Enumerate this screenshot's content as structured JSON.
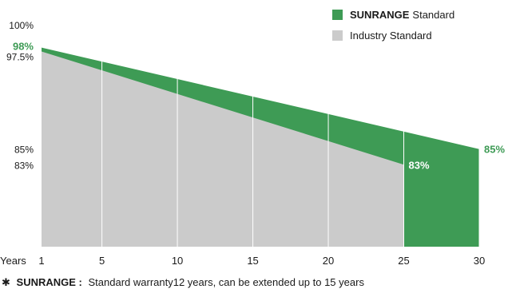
{
  "colors": {
    "sunrange": "#3e9b55",
    "industry": "#cbcbcb",
    "grid": "#ffffff",
    "accent_text": "#3e9b55"
  },
  "legend": {
    "items": [
      {
        "brand": "SUNRANGE",
        "label": "Standard",
        "color": "#3e9b55"
      },
      {
        "brand": "",
        "label": "Industry Standard",
        "color": "#cbcbcb"
      }
    ]
  },
  "footnote": {
    "marker": "✱",
    "brand": "SUNRANGE :",
    "text": "Standard warranty12 years, can be extended up to 15 years"
  },
  "chart_data": {
    "type": "area",
    "x_axis_label": "Years",
    "x_ticks": [
      1,
      5,
      10,
      15,
      20,
      25,
      30
    ],
    "y_ticks": [
      "100%",
      "97.5%",
      "85%",
      "83%"
    ],
    "y_ticks_values": [
      100,
      97.5,
      85,
      83
    ],
    "ylim": [
      72.5,
      100
    ],
    "grid": true,
    "legend_position": "top-right",
    "series": [
      {
        "name": "SUNRANGE Standard",
        "x": [
          1,
          30
        ],
        "values": [
          98,
          85
        ],
        "start_label": "98%",
        "end_label": "85%"
      },
      {
        "name": "Industry Standard",
        "x": [
          1,
          25
        ],
        "values": [
          97.5,
          83
        ],
        "end_label": "83%"
      }
    ]
  }
}
